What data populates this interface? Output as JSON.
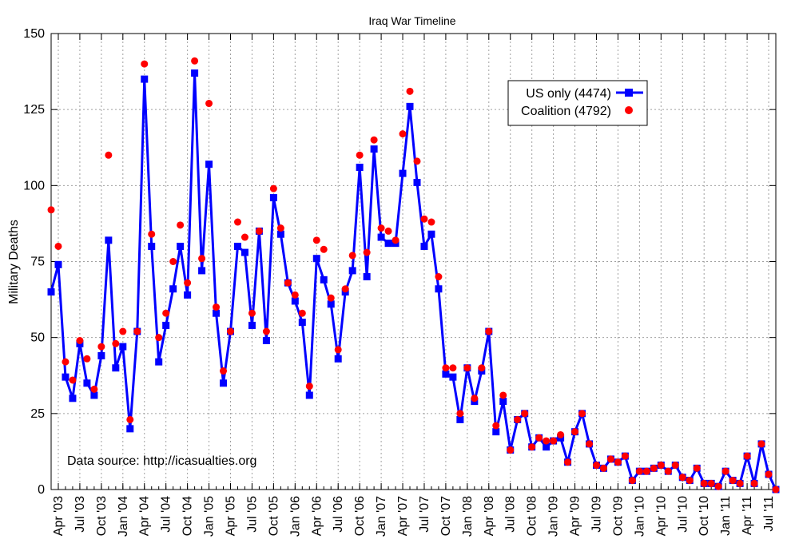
{
  "chart_data": {
    "type": "line",
    "title": "Iraq War Timeline",
    "xlabel": "",
    "ylabel": "Military Deaths",
    "ylim": [
      0,
      150
    ],
    "yticks": [
      0,
      25,
      50,
      75,
      100,
      125,
      150
    ],
    "grid": true,
    "legend_placement": "top-right",
    "x_start": "2003-03",
    "xticks": [
      "Apr '03",
      "Jul '03",
      "Oct '03",
      "Jan '04",
      "Apr '04",
      "Jul '04",
      "Oct '04",
      "Jan '05",
      "Apr '05",
      "Jul '05",
      "Oct '05",
      "Jan '06",
      "Apr '06",
      "Jul '06",
      "Oct '06",
      "Jan '07",
      "Apr '07",
      "Jul '07",
      "Oct '07",
      "Jan '08",
      "Apr '08",
      "Jul '08",
      "Oct '08",
      "Jan '09",
      "Apr '09",
      "Jul '09",
      "Oct '09",
      "Jan '10",
      "Apr '10",
      "Jul '10",
      "Oct '10",
      "Jan '11",
      "Apr '11",
      "Jul '11"
    ],
    "annotation": "Data source: http://icasualties.org",
    "series": [
      {
        "name": "US only (4474)",
        "color": "#0000ff",
        "marker": "square",
        "values": [
          65,
          74,
          37,
          30,
          48,
          35,
          31,
          44,
          82,
          40,
          47,
          20,
          52,
          135,
          80,
          42,
          54,
          66,
          80,
          64,
          137,
          72,
          107,
          58,
          35,
          52,
          80,
          78,
          54,
          85,
          49,
          96,
          84,
          68,
          62,
          55,
          31,
          76,
          69,
          61,
          43,
          65,
          72,
          106,
          70,
          112,
          83,
          81,
          81,
          104,
          126,
          101,
          80,
          84,
          66,
          38,
          37,
          23,
          40,
          29,
          39,
          52,
          19,
          29,
          13,
          23,
          25,
          14,
          17,
          14,
          16,
          17,
          9,
          19,
          25,
          15,
          8,
          7,
          10,
          9,
          11,
          3,
          6,
          6,
          7,
          8,
          6,
          8,
          4,
          3,
          7,
          2,
          2,
          1,
          6,
          3,
          2,
          11,
          2,
          15,
          5,
          0
        ]
      },
      {
        "name": "Coalition (4792)",
        "color": "#ff0000",
        "marker": "circle",
        "values": [
          92,
          80,
          42,
          36,
          49,
          43,
          33,
          47,
          110,
          48,
          52,
          23,
          52,
          140,
          84,
          50,
          58,
          75,
          87,
          68,
          141,
          76,
          127,
          60,
          39,
          52,
          88,
          83,
          58,
          85,
          52,
          99,
          86,
          68,
          64,
          58,
          34,
          82,
          79,
          63,
          46,
          66,
          77,
          110,
          78,
          115,
          86,
          85,
          82,
          117,
          131,
          108,
          89,
          88,
          70,
          40,
          40,
          25,
          40,
          30,
          40,
          52,
          21,
          31,
          13,
          23,
          25,
          14,
          17,
          16,
          16,
          18,
          9,
          19,
          25,
          15,
          8,
          7,
          10,
          9,
          11,
          3,
          6,
          6,
          7,
          8,
          6,
          8,
          4,
          3,
          7,
          2,
          2,
          1,
          6,
          3,
          2,
          11,
          2,
          15,
          5,
          0
        ]
      }
    ]
  }
}
